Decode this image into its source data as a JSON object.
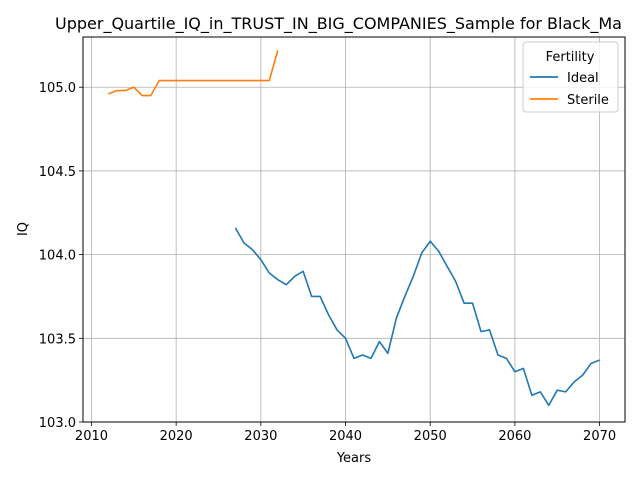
{
  "chart_data": {
    "type": "line",
    "title": "Upper_Quartile_IQ_in_TRUST_IN_BIG_COMPANIES_Sample for Black_Ma",
    "xlabel": "Years",
    "ylabel": "IQ",
    "xlim": [
      2009,
      2073
    ],
    "ylim": [
      103.0,
      105.3
    ],
    "xticks": [
      2010,
      2020,
      2030,
      2040,
      2050,
      2060,
      2070
    ],
    "yticks": [
      103.0,
      103.5,
      104.0,
      104.5,
      105.0
    ],
    "ytick_labels": [
      "103.0",
      "103.5",
      "104.0",
      "104.5",
      "105.0"
    ],
    "grid": true,
    "legend": {
      "title": "Fertility",
      "placement": "top-right"
    },
    "series": [
      {
        "name": "Ideal",
        "color": "#1f77b4",
        "x": [
          2027,
          2028,
          2029,
          2030,
          2031,
          2032,
          2033,
          2034,
          2035,
          2036,
          2037,
          2038,
          2039,
          2040,
          2041,
          2042,
          2043,
          2044,
          2045,
          2046,
          2047,
          2048,
          2049,
          2050,
          2051,
          2052,
          2053,
          2054,
          2055,
          2056,
          2057,
          2058,
          2059,
          2060,
          2061,
          2062,
          2063,
          2064,
          2065,
          2066,
          2067,
          2068,
          2069,
          2070
        ],
        "y": [
          104.16,
          104.07,
          104.03,
          103.97,
          103.89,
          103.85,
          103.82,
          103.87,
          103.9,
          103.75,
          103.75,
          103.64,
          103.55,
          103.5,
          103.38,
          103.4,
          103.38,
          103.48,
          103.41,
          103.62,
          103.75,
          103.87,
          104.01,
          104.08,
          104.02,
          103.93,
          103.84,
          103.71,
          103.71,
          103.54,
          103.55,
          103.4,
          103.38,
          103.3,
          103.32,
          103.16,
          103.18,
          103.1,
          103.19,
          103.18,
          103.24,
          103.28,
          103.35,
          103.37
        ]
      },
      {
        "name": "Sterile",
        "color": "#ff7f0e",
        "x": [
          2012,
          2013,
          2014,
          2015,
          2016,
          2017,
          2018,
          2019,
          2020,
          2021,
          2022,
          2023,
          2024,
          2025,
          2026,
          2027,
          2028,
          2029,
          2030,
          2031,
          2032
        ],
        "y": [
          104.96,
          104.98,
          104.98,
          105.0,
          104.95,
          104.95,
          105.04,
          105.04,
          105.04,
          105.04,
          105.04,
          105.04,
          105.04,
          105.04,
          105.04,
          105.04,
          105.04,
          105.04,
          105.04,
          105.04,
          105.22
        ]
      }
    ]
  }
}
